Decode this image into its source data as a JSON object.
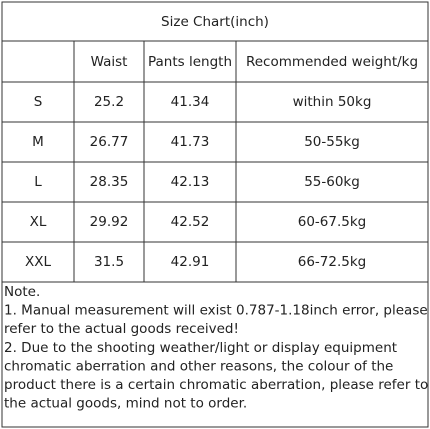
{
  "table": {
    "title": "Size Chart(inch)",
    "header": [
      "Waist",
      "Pants length",
      "Recommended weight/kg"
    ],
    "rows": [
      [
        "S",
        25.2,
        41.34,
        "within 50kg"
      ],
      [
        "M",
        26.77,
        41.73,
        "50-55kg"
      ],
      [
        "L",
        28.35,
        42.13,
        "55-60kg"
      ],
      [
        "XL",
        29.92,
        42.52,
        "60-67.5kg"
      ],
      [
        "XXL",
        31.5,
        42.91,
        "66-72.5kg"
      ]
    ],
    "notes": [
      "Note.",
      "1. Manual measurement will exist 0.787-1.18inch error, please",
      "refer to the actual goods received!",
      "2. Due to the shooting weather/light or display equipment",
      "chromatic aberration and other reasons, the colour of the",
      "product there is a certain chromatic aberration, please refer to",
      "the actual goods, mind not to order."
    ]
  }
}
